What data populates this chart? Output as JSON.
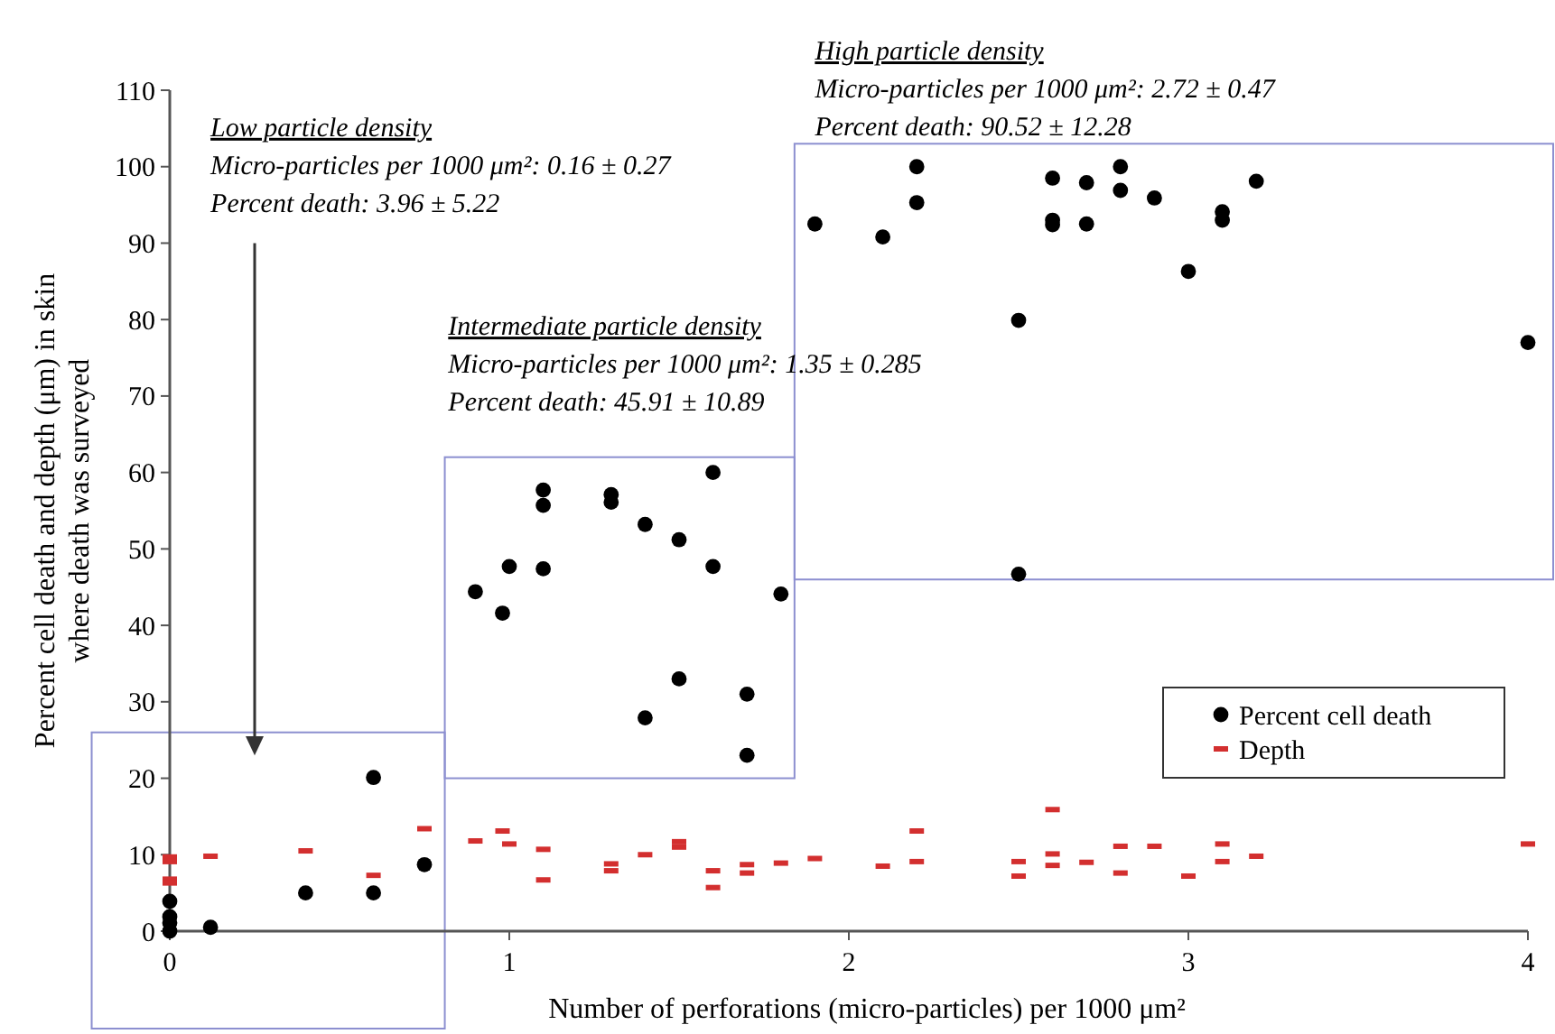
{
  "chart_data": {
    "type": "scatter",
    "xlabel": "Number of perforations (micro-particles) per 1000 μm²",
    "ylabel": "Percent cell death and depth (μm) in skin\nwhere death was surveyed",
    "xlim": [
      0,
      4
    ],
    "xticks": [
      0,
      1,
      2,
      3,
      4
    ],
    "ylim": [
      0,
      110
    ],
    "yticks": [
      0,
      10,
      20,
      30,
      40,
      50,
      60,
      70,
      80,
      90,
      100,
      110
    ],
    "grid": false,
    "legend": "right",
    "series": [
      {
        "name": "Percent cell death",
        "color": "#000000",
        "marker": "circle",
        "x": [
          0,
          0,
          0,
          0,
          0.12,
          0.4,
          0.6,
          0.6,
          0.75,
          0.9,
          0.98,
          1.0,
          1.1,
          1.1,
          1.1,
          1.3,
          1.3,
          1.4,
          1.5,
          1.6,
          1.6,
          1.8,
          1.5,
          1.4,
          1.7,
          1.7,
          1.9,
          2.1,
          2.2,
          2.2,
          2.5,
          2.5,
          2.6,
          2.6,
          2.6,
          2.7,
          2.7,
          2.8,
          2.8,
          2.9,
          3.0,
          3.1,
          3.1,
          3.2,
          4.0
        ],
        "values": [
          3.9,
          1.9,
          1.1,
          0,
          0.5,
          5,
          5,
          20.1,
          8.7,
          44.4,
          41.6,
          47.7,
          57.7,
          55.7,
          47.4,
          57.1,
          56.1,
          53.2,
          51.2,
          60,
          47.7,
          44.1,
          33,
          27.9,
          31,
          23,
          92.5,
          90.8,
          100,
          95.3,
          79.9,
          46.7,
          98.5,
          93,
          92.4,
          97.9,
          92.5,
          100,
          96.9,
          95.9,
          86.3,
          94.1,
          93,
          98.1,
          77
        ]
      },
      {
        "name": "Depth",
        "color": "#d32f2f",
        "marker": "square",
        "x": [
          0,
          0,
          0,
          0,
          0.12,
          0.4,
          0.6,
          0.75,
          0.9,
          0.98,
          1.0,
          1.1,
          1.1,
          1.3,
          1.3,
          1.4,
          1.5,
          1.5,
          1.6,
          1.6,
          1.7,
          1.7,
          1.8,
          1.9,
          2.1,
          2.2,
          2.2,
          2.5,
          2.5,
          2.6,
          2.6,
          2.6,
          2.7,
          2.8,
          2.8,
          2.9,
          3.0,
          3.1,
          3.1,
          3.2,
          4.0
        ],
        "values": [
          9.7,
          9.1,
          6.8,
          6.3,
          9.8,
          10.5,
          7.3,
          13.4,
          11.8,
          13.1,
          11.4,
          10.7,
          6.7,
          8.8,
          7.9,
          10,
          11.7,
          11,
          7.9,
          5.7,
          8.7,
          7.6,
          8.9,
          9.5,
          8.5,
          13.1,
          9.1,
          9.1,
          7.2,
          15.9,
          10.1,
          8.6,
          9,
          11.1,
          7.6,
          11.1,
          7.2,
          11.4,
          9.1,
          9.8,
          11.4
        ]
      }
    ],
    "annotations": [
      "Low particle density",
      "Micro-particles per 1000 μm²: 0.16 ± 0.27",
      "Percent death: 3.96 ± 5.22",
      "Intermediate particle density",
      "Micro-particles per 1000 μm²: 1.35 ± 0.285",
      "Percent death: 45.91 ± 10.89",
      "High particle density",
      "Micro-particles per 1000 μm²: 2.72 ± 0.47",
      "Percent death: 90.52 ± 12.28"
    ]
  }
}
